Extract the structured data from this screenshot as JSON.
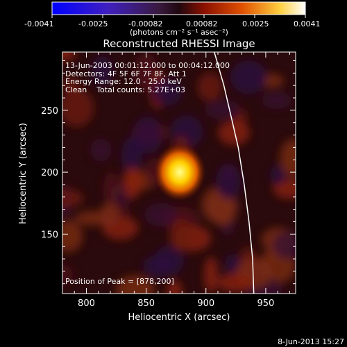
{
  "colorbar": {
    "tick_labels": [
      "-0.0041",
      "-0.0025",
      "-0.00082",
      "0.00082",
      "0.0025",
      "0.0041"
    ],
    "unit_label": "(photons cm⁻² s⁻¹ asec⁻²)",
    "range": [
      -0.0041,
      0.0041
    ]
  },
  "chart_data": {
    "type": "heatmap",
    "title": "Reconstructed RHESSI Image",
    "xlabel": "Heliocentric X (arcsec)",
    "ylabel": "Heliocentric Y (arcsec)",
    "xlim": [
      780,
      975
    ],
    "ylim": [
      102,
      297
    ],
    "x_ticks": [
      800,
      850,
      900,
      950
    ],
    "y_ticks": [
      150,
      200,
      250
    ],
    "annotations": [
      "13-Jun-2003 00:01:12.000 to 00:04:12.000",
      "Detectors: 4F 5F 6F 7F 8F, Att 1",
      "Energy Range: 12.0 - 25.0 keV",
      "Clean    Total counts: 5.27E+03"
    ],
    "peak_label": "Position of Peak = [878,200]",
    "peak": {
      "x": 878,
      "y": 200
    },
    "limb_curve": [
      [
        907,
        297
      ],
      [
        915,
        270
      ],
      [
        921,
        245
      ],
      [
        927,
        220
      ],
      [
        932,
        190
      ],
      [
        936,
        160
      ],
      [
        939,
        130
      ],
      [
        940,
        102
      ]
    ]
  },
  "footer_date": "8-Jun-2013 15:27"
}
